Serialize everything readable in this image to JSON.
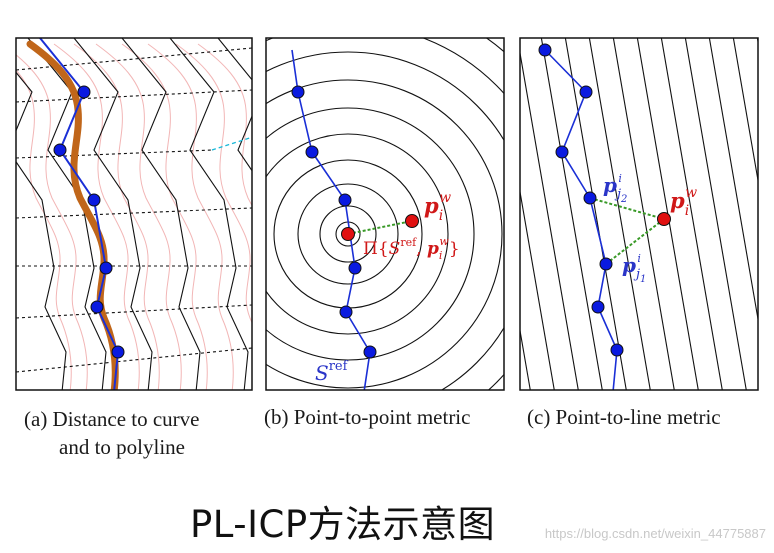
{
  "figure": {
    "panels": [
      {
        "id": "a",
        "caption_line1": "(a) Distance to curve",
        "caption_line2": "and to polyline"
      },
      {
        "id": "b",
        "caption": "(b) Point-to-point metric",
        "labels": {
          "point_main": "p",
          "point_sub": "i",
          "point_sup": "w",
          "proj_prefix": "Π{",
          "proj_S": "S",
          "proj_S_sup": "ref",
          "proj_comma": ", ",
          "proj_p": "p",
          "proj_p_sub": "i",
          "proj_p_sup": "w",
          "proj_suffix": "}",
          "curve_S": "S",
          "curve_sup": "ref"
        }
      },
      {
        "id": "c",
        "caption": "(c) Point-to-line metric",
        "labels": {
          "point_main": "p",
          "point_sub": "i",
          "point_sup": "w",
          "j2_main": "p",
          "j2_sub": "j",
          "j2_subsub": "2",
          "j2_sup": "i",
          "j1_main": "p",
          "j1_sub": "j",
          "j1_subsub": "1",
          "j1_sup": "i"
        }
      }
    ],
    "colors": {
      "polyline": "#1a2fd6",
      "point_blue": "#0a1ae0",
      "point_red": "#e01010",
      "label_red": "#d01818",
      "label_blue": "#2a35c8",
      "curve": "#c0661a",
      "contour_pink": "#f2b6b6",
      "green_dash": "#3a9a28",
      "cyan_dash": "#18b8d8"
    }
  },
  "title": "PL-ICP方法示意图",
  "watermark": "https://blog.csdn.net/weixin_44775887"
}
